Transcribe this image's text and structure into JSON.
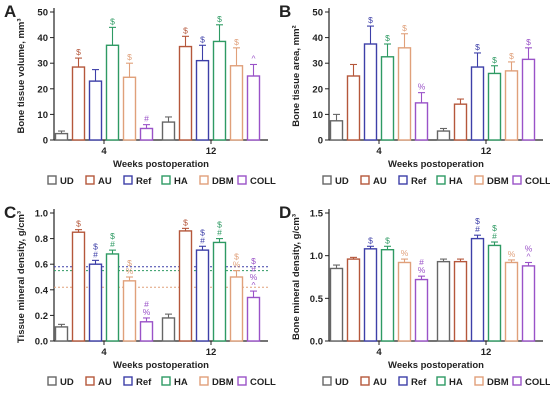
{
  "colors": {
    "UD": "#666666",
    "AU": "#b5573b",
    "Ref": "#3d3fa8",
    "HA": "#2e9a63",
    "DBM": "#e0a07a",
    "COLL": "#9a52c8"
  },
  "legend": [
    "UD",
    "AU",
    "Ref",
    "HA",
    "DBM",
    "COLL"
  ],
  "chart_data": [
    {
      "panel": "A",
      "type": "bar",
      "title": "",
      "xlabel": "Weeks postoperation",
      "ylabel": "Bone tissue volume, mm³",
      "categories": [
        "4",
        "12"
      ],
      "ylim": [
        0,
        50
      ],
      "yticks": [
        0,
        10,
        20,
        30,
        40,
        50
      ],
      "grid": false,
      "legend_position": "bottom",
      "series": [
        {
          "name": "UD",
          "values": [
            2.5,
            7.0
          ],
          "errors": [
            1.0,
            2.0
          ],
          "labels": [
            [],
            []
          ]
        },
        {
          "name": "AU",
          "values": [
            28.5,
            36.5
          ],
          "errors": [
            3.5,
            4.0
          ],
          "labels": [
            [
              "$"
            ],
            [
              "$"
            ]
          ]
        },
        {
          "name": "Ref",
          "values": [
            23.0,
            31.0
          ],
          "errors": [
            4.5,
            6.0
          ],
          "labels": [
            [],
            [
              "$"
            ]
          ]
        },
        {
          "name": "HA",
          "values": [
            37.0,
            38.5
          ],
          "errors": [
            7.0,
            6.5
          ],
          "labels": [
            [
              "$"
            ],
            [
              "$"
            ]
          ]
        },
        {
          "name": "DBM",
          "values": [
            24.5,
            29.0
          ],
          "errors": [
            5.5,
            7.0
          ],
          "labels": [
            [
              "$"
            ],
            [
              "$"
            ]
          ]
        },
        {
          "name": "COLL",
          "values": [
            4.5,
            25.0
          ],
          "errors": [
            1.5,
            4.5
          ],
          "labels": [
            [
              "#"
            ],
            [
              "^"
            ]
          ]
        }
      ]
    },
    {
      "panel": "B",
      "type": "bar",
      "title": "",
      "xlabel": "Weeks postoperation",
      "ylabel": "Bone tissue area, mm²",
      "categories": [
        "4",
        "12"
      ],
      "ylim": [
        0,
        50
      ],
      "yticks": [
        0,
        10,
        20,
        30,
        40,
        50
      ],
      "grid": false,
      "legend_position": "bottom",
      "series": [
        {
          "name": "UD",
          "values": [
            7.5,
            3.5
          ],
          "errors": [
            2.5,
            1.0
          ],
          "labels": [
            [],
            []
          ]
        },
        {
          "name": "AU",
          "values": [
            25.0,
            14.0
          ],
          "errors": [
            4.5,
            2.0
          ],
          "labels": [
            [],
            []
          ]
        },
        {
          "name": "Ref",
          "values": [
            37.5,
            28.5
          ],
          "errors": [
            7.0,
            5.5
          ],
          "labels": [
            [
              "$"
            ],
            [
              "$"
            ]
          ]
        },
        {
          "name": "HA",
          "values": [
            32.5,
            26.0
          ],
          "errors": [
            5.0,
            3.0
          ],
          "labels": [
            [
              "$"
            ],
            [
              "$"
            ]
          ]
        },
        {
          "name": "DBM",
          "values": [
            36.0,
            27.0
          ],
          "errors": [
            5.5,
            3.5
          ],
          "labels": [
            [
              "$"
            ],
            [
              "$"
            ]
          ]
        },
        {
          "name": "COLL",
          "values": [
            14.5,
            31.5
          ],
          "errors": [
            4.0,
            4.5
          ],
          "labels": [
            [
              "%"
            ],
            [
              "$"
            ]
          ]
        }
      ]
    },
    {
      "panel": "C",
      "type": "bar",
      "title": "",
      "xlabel": "Weeks postoperation",
      "ylabel": "Tissue mineral density, g/cm³",
      "categories": [
        "4",
        "12"
      ],
      "ylim": [
        0,
        1.0
      ],
      "yticks": [
        0.0,
        0.2,
        0.4,
        0.6,
        0.8,
        1.0
      ],
      "grid": false,
      "legend_position": "bottom",
      "reference_lines": [
        {
          "series": "Ref",
          "value": 0.58
        },
        {
          "series": "HA",
          "value": 0.55
        },
        {
          "series": "DBM",
          "value": 0.42
        }
      ],
      "series": [
        {
          "name": "UD",
          "values": [
            0.11,
            0.18
          ],
          "errors": [
            0.02,
            0.03
          ],
          "labels": [
            [],
            []
          ]
        },
        {
          "name": "AU",
          "values": [
            0.85,
            0.86
          ],
          "errors": [
            0.02,
            0.02
          ],
          "labels": [
            [
              "$"
            ],
            [
              "$"
            ]
          ]
        },
        {
          "name": "Ref",
          "values": [
            0.6,
            0.71
          ],
          "errors": [
            0.03,
            0.03
          ],
          "labels": [
            [
              "$",
              "#"
            ],
            [
              "$",
              "#"
            ]
          ]
        },
        {
          "name": "HA",
          "values": [
            0.68,
            0.77
          ],
          "errors": [
            0.03,
            0.03
          ],
          "labels": [
            [
              "$",
              "#"
            ],
            [
              "$",
              "#"
            ]
          ]
        },
        {
          "name": "DBM",
          "values": [
            0.47,
            0.5
          ],
          "errors": [
            0.03,
            0.05
          ],
          "labels": [
            [
              "$",
              "%"
            ],
            [
              "$",
              "%"
            ]
          ]
        },
        {
          "name": "COLL",
          "values": [
            0.15,
            0.34
          ],
          "errors": [
            0.03,
            0.05
          ],
          "labels": [
            [
              "#",
              "%"
            ],
            [
              "$",
              "#",
              "%",
              "^"
            ]
          ]
        }
      ]
    },
    {
      "panel": "D",
      "type": "bar",
      "title": "",
      "xlabel": "Weeks postoperation",
      "ylabel": "Bone mineral density, g/cm³",
      "categories": [
        "4",
        "12"
      ],
      "ylim": [
        0,
        1.5
      ],
      "yticks": [
        0.0,
        0.5,
        1.0,
        1.5
      ],
      "grid": false,
      "legend_position": "bottom",
      "series": [
        {
          "name": "UD",
          "values": [
            0.85,
            0.93
          ],
          "errors": [
            0.04,
            0.03
          ],
          "labels": [
            [],
            []
          ]
        },
        {
          "name": "AU",
          "values": [
            0.96,
            0.93
          ],
          "errors": [
            0.02,
            0.03
          ],
          "labels": [
            [],
            []
          ]
        },
        {
          "name": "Ref",
          "values": [
            1.08,
            1.2
          ],
          "errors": [
            0.03,
            0.04
          ],
          "labels": [
            [
              "$"
            ],
            [
              "$",
              "#"
            ]
          ]
        },
        {
          "name": "HA",
          "values": [
            1.07,
            1.12
          ],
          "errors": [
            0.04,
            0.04
          ],
          "labels": [
            [
              "$"
            ],
            [
              "$",
              "#"
            ]
          ]
        },
        {
          "name": "DBM",
          "values": [
            0.92,
            0.92
          ],
          "errors": [
            0.04,
            0.03
          ],
          "labels": [
            [
              "%"
            ],
            [
              "%"
            ]
          ]
        },
        {
          "name": "COLL",
          "values": [
            0.72,
            0.88
          ],
          "errors": [
            0.04,
            0.04
          ],
          "labels": [
            [
              "#",
              "%"
            ],
            [
              "%",
              "^"
            ]
          ]
        }
      ]
    }
  ]
}
